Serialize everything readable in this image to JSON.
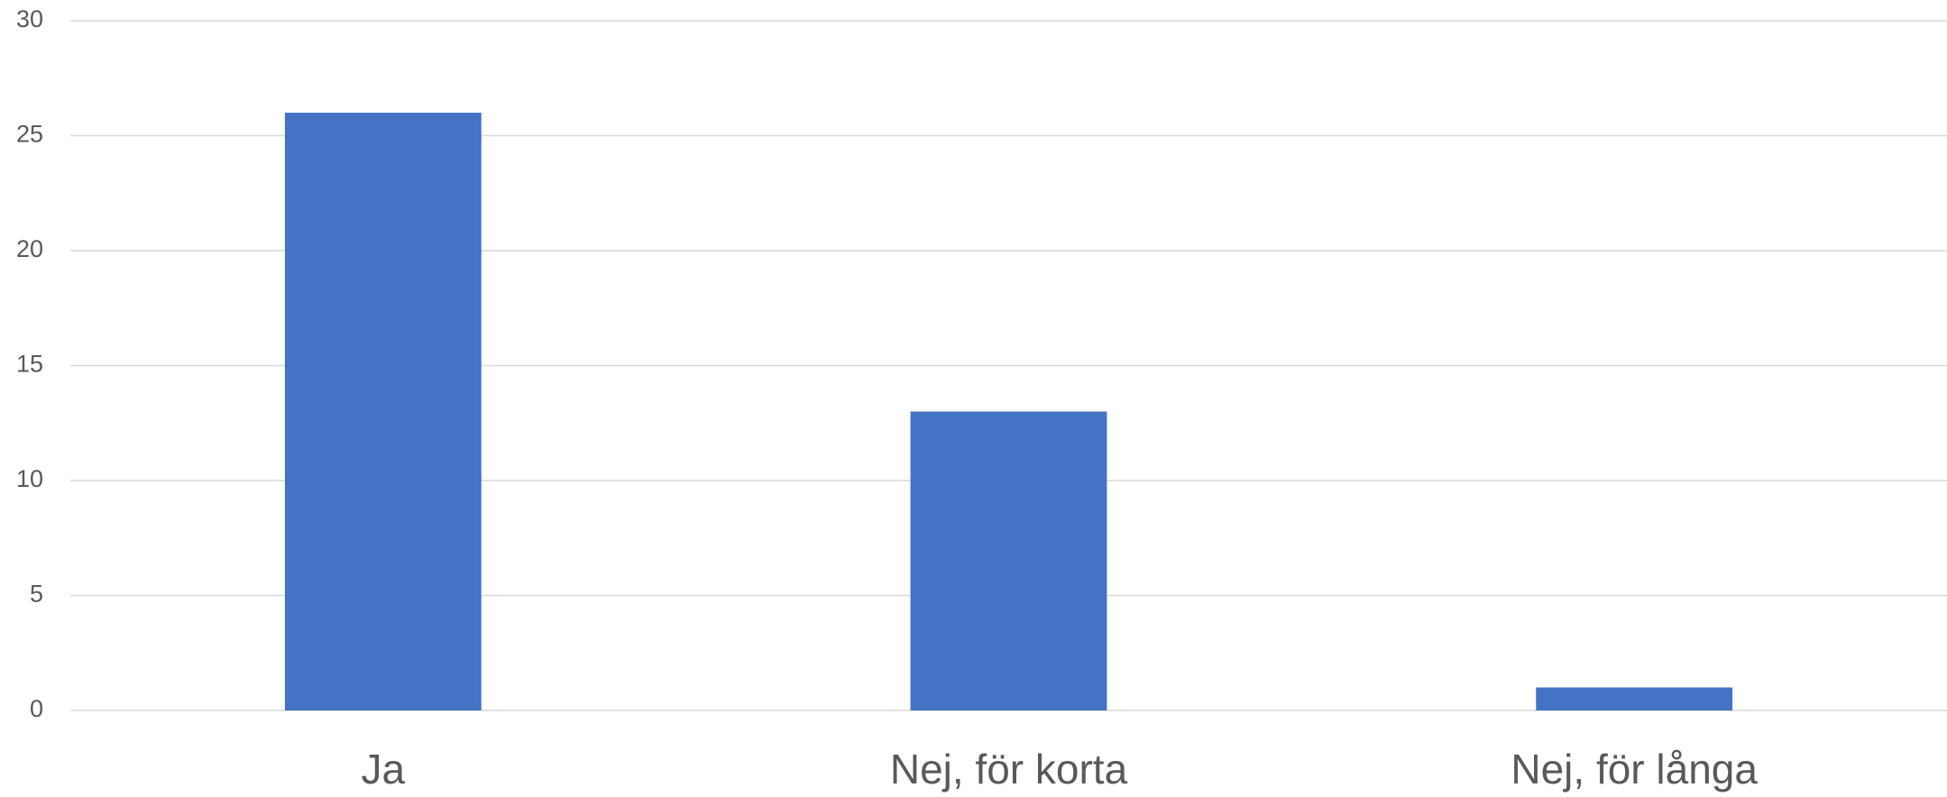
{
  "chart_data": {
    "type": "bar",
    "categories": [
      "Ja",
      "Nej, för korta",
      "Nej, för långa"
    ],
    "values": [
      26,
      13,
      1
    ],
    "color": "#4472c4",
    "ylim": [
      0,
      30
    ],
    "yticks": [
      0,
      5,
      10,
      15,
      20,
      25,
      30
    ],
    "grid": true
  }
}
